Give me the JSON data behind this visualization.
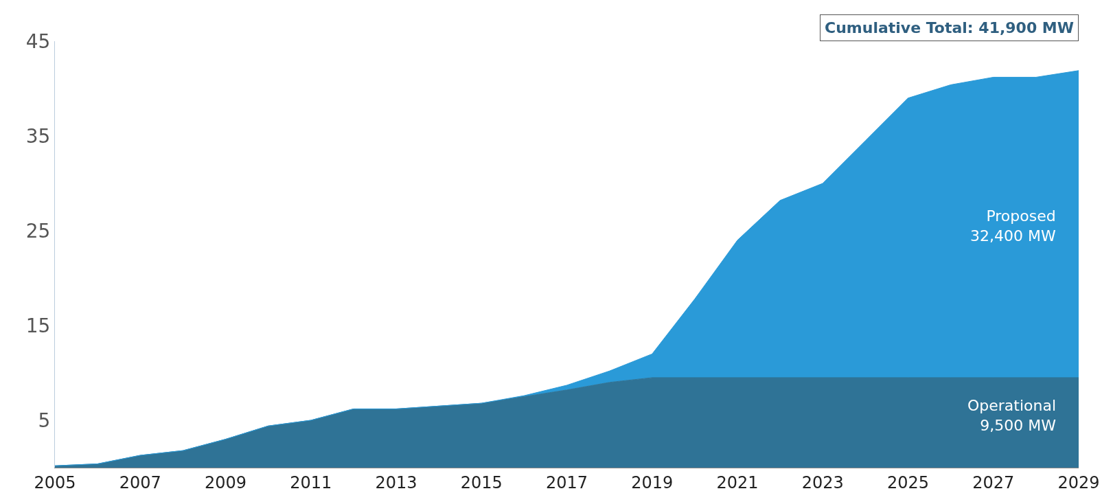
{
  "chart_data": {
    "type": "area",
    "stacked": true,
    "legend": false,
    "x": [
      2005,
      2006,
      2007,
      2008,
      2009,
      2010,
      2011,
      2012,
      2013,
      2014,
      2015,
      2016,
      2017,
      2018,
      2019,
      2020,
      2021,
      2022,
      2023,
      2024,
      2025,
      2026,
      2027,
      2028,
      2029
    ],
    "series": [
      {
        "name": "Operational",
        "color": "#2f7396",
        "values": [
          0.2,
          0.4,
          1.3,
          1.8,
          3.0,
          4.4,
          5.0,
          6.2,
          6.2,
          6.5,
          6.8,
          7.5,
          8.2,
          9.0,
          9.5,
          9.5,
          9.5,
          9.5,
          9.5,
          9.5,
          9.5,
          9.5,
          9.5,
          9.5,
          9.5
        ]
      },
      {
        "name": "Proposed",
        "color": "#2a9ad8",
        "values": [
          0,
          0,
          0,
          0,
          0,
          0,
          0,
          0,
          0,
          0,
          0,
          0.1,
          0.5,
          1.2,
          2.5,
          8.3,
          14.5,
          18.7,
          20.5,
          25.0,
          29.5,
          30.9,
          31.7,
          31.7,
          32.4
        ]
      }
    ],
    "xlim": [
      2005,
      2029
    ],
    "xticks": [
      2005,
      2007,
      2009,
      2011,
      2013,
      2015,
      2017,
      2019,
      2021,
      2023,
      2025,
      2027,
      2029
    ],
    "ylim": [
      0,
      45
    ],
    "yticks": [
      5,
      15,
      25,
      35,
      45
    ],
    "annotations": [
      "Cumulative Total: 41,900 MW",
      "9,500 MW",
      "32,400 MW"
    ]
  }
}
